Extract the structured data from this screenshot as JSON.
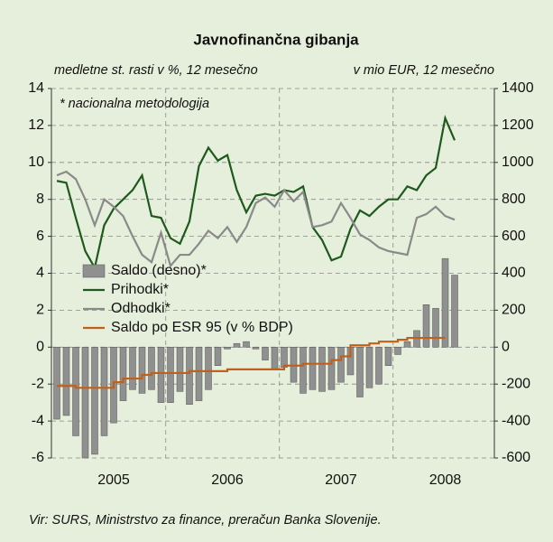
{
  "chart_data": {
    "type": "bar_line_dual",
    "title": "Javnofinančna gibanja",
    "y_label": "medletne st. rasti v %, 12 mesečno",
    "y2_label": "v mio EUR, 12 mesečno",
    "annotation": "* nacionalna metodologija",
    "source": "Vir: SURS, Ministrstvo za finance, preračun Banka Slovenije.",
    "categories": [
      null,
      null,
      null,
      null,
      null,
      null,
      "2005",
      null,
      null,
      null,
      null,
      null,
      null,
      null,
      null,
      null,
      null,
      null,
      "2006",
      null,
      null,
      null,
      null,
      null,
      null,
      null,
      null,
      null,
      null,
      null,
      "2007",
      null,
      null,
      null,
      null,
      null,
      null,
      null,
      null,
      null,
      null,
      "2008",
      null
    ],
    "ylim": [
      -6,
      14
    ],
    "yticks": [
      -6,
      -4,
      -2,
      0,
      2,
      4,
      6,
      8,
      10,
      12,
      14
    ],
    "y2lim": [
      -600,
      1400
    ],
    "y2ticks": [
      -600,
      -400,
      -200,
      0,
      200,
      400,
      600,
      800,
      1000,
      1200,
      1400
    ],
    "grid": true,
    "series": [
      {
        "name": "Saldo (desno)*",
        "type": "bar",
        "axis": "y2",
        "color": "#909090",
        "values": [
          -390,
          -370,
          -480,
          -600,
          -580,
          -480,
          -410,
          -290,
          -230,
          -250,
          -230,
          -300,
          -300,
          -240,
          -310,
          -290,
          -230,
          -100,
          -10,
          20,
          30,
          -10,
          -70,
          -120,
          -110,
          -190,
          -250,
          -230,
          -240,
          -230,
          -190,
          -150,
          -270,
          -220,
          -200,
          -100,
          -40,
          30,
          90,
          230,
          210,
          480,
          390
        ]
      },
      {
        "name": "Prihodki*",
        "type": "line",
        "color": "#1e5a1e",
        "values": [
          9.0,
          8.9,
          7.0,
          5.2,
          4.3,
          6.6,
          7.5,
          8.0,
          8.5,
          9.3,
          7.1,
          7.0,
          5.9,
          5.6,
          6.8,
          9.8,
          10.8,
          10.1,
          10.4,
          8.5,
          7.3,
          8.2,
          8.3,
          8.2,
          8.5,
          8.4,
          8.7,
          6.5,
          5.8,
          4.7,
          4.9,
          6.4,
          7.4,
          7.1,
          7.6,
          8.0,
          8.0,
          8.7,
          8.5,
          9.3,
          9.7,
          12.4,
          11.2
        ]
      },
      {
        "name": "Odhodki*",
        "type": "line",
        "color": "#8a8a8a",
        "values": [
          9.3,
          9.5,
          9.1,
          8.0,
          6.6,
          8.0,
          7.6,
          7.1,
          6.0,
          5.0,
          4.6,
          6.2,
          4.4,
          5.0,
          5.0,
          5.6,
          6.3,
          5.9,
          6.5,
          5.7,
          6.5,
          7.8,
          8.1,
          7.6,
          8.5,
          7.9,
          8.4,
          6.5,
          6.6,
          6.8,
          7.8,
          7.0,
          6.1,
          5.8,
          5.4,
          5.2,
          5.1,
          5.0,
          7.0,
          7.2,
          7.6,
          7.1,
          6.9
        ]
      },
      {
        "name": "Saldo po ESR 95 (v % BDP)",
        "type": "step",
        "color": "#c0601a",
        "values": [
          -2.1,
          -2.1,
          -2.2,
          -2.2,
          -2.2,
          -2.2,
          -1.9,
          -1.7,
          -1.7,
          -1.5,
          -1.4,
          -1.4,
          -1.4,
          -1.4,
          -1.3,
          -1.3,
          -1.3,
          -1.3,
          -1.2,
          -1.2,
          -1.2,
          -1.2,
          -1.2,
          -1.2,
          -1.0,
          -1.0,
          -0.9,
          -0.9,
          -0.9,
          -0.7,
          -0.5,
          0.1,
          0.1,
          0.2,
          0.3,
          0.3,
          0.4,
          0.5,
          0.5,
          0.5,
          0.5,
          0.5,
          null
        ]
      }
    ]
  }
}
